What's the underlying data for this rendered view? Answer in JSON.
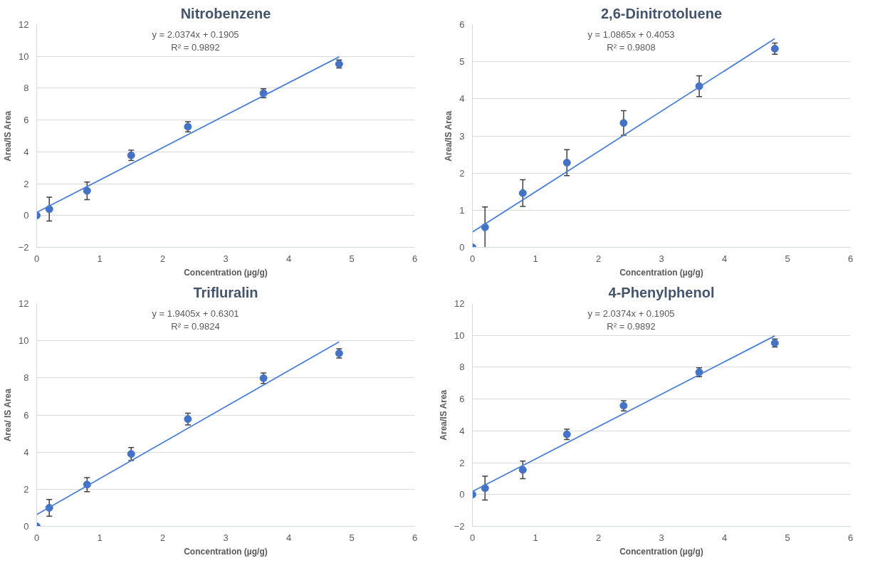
{
  "chart_data": [
    {
      "type": "scatter",
      "title": "Nitrobenzene",
      "xlabel": "Concentration (µg/g)",
      "ylabel": "Area/IS Area",
      "xlim": [
        0,
        6
      ],
      "xticks": [
        0,
        1,
        2,
        3,
        4,
        5,
        6
      ],
      "ylim": [
        -2,
        12
      ],
      "yticks": [
        -2,
        0,
        2,
        4,
        6,
        8,
        10,
        12
      ],
      "grid": "y",
      "series": [
        {
          "marker": "circle",
          "color": "#4472c4",
          "x": [
            0,
            0.2,
            0.8,
            1.5,
            2.4,
            3.6,
            4.8
          ],
          "values": [
            0,
            0.4,
            1.55,
            3.78,
            5.58,
            7.68,
            9.52
          ],
          "errors": [
            null,
            0.75,
            0.55,
            0.32,
            0.32,
            0.28,
            0.25
          ]
        },
        {
          "type": "line",
          "color": "#4a7fd4",
          "x": [
            0,
            4.8
          ],
          "values": [
            0.19,
            9.97
          ]
        }
      ],
      "annotations": [
        "y = 2.0374x + 0.1905",
        "R² = 0.9892"
      ]
    },
    {
      "type": "scatter",
      "title": "2,6-Dinitrotoluene",
      "xlabel": "Concentration (µg/g)",
      "ylabel": "Area/IS Area",
      "xlim": [
        0,
        6
      ],
      "xticks": [
        0,
        1,
        2,
        3,
        4,
        5,
        6
      ],
      "ylim": [
        0,
        6
      ],
      "yticks": [
        0,
        1,
        2,
        3,
        4,
        5,
        6
      ],
      "grid": "y",
      "series": [
        {
          "marker": "circle",
          "color": "#4472c4",
          "x": [
            0,
            0.2,
            0.8,
            1.5,
            2.4,
            3.6,
            4.8
          ],
          "values": [
            0,
            0.54,
            1.46,
            2.28,
            3.35,
            4.34,
            5.35
          ],
          "errors": [
            null,
            0.55,
            0.36,
            0.35,
            0.33,
            0.28,
            0.15
          ]
        },
        {
          "type": "line",
          "color": "#4a7fd4",
          "x": [
            0,
            4.8
          ],
          "values": [
            0.41,
            5.62
          ]
        }
      ],
      "annotations": [
        "y = 1.0865x + 0.4053",
        "R² = 0.9808"
      ]
    },
    {
      "type": "scatter",
      "title": "Trifluralin",
      "xlabel": "Concentration (µg/g)",
      "ylabel": "Area/ IS Area",
      "xlim": [
        0,
        6
      ],
      "xticks": [
        0,
        1,
        2,
        3,
        4,
        5,
        6
      ],
      "ylim": [
        0,
        12
      ],
      "yticks": [
        0,
        2,
        4,
        6,
        8,
        10,
        12
      ],
      "grid": "y",
      "series": [
        {
          "marker": "circle",
          "color": "#4472c4",
          "x": [
            0,
            0.2,
            0.8,
            1.5,
            2.4,
            3.6,
            4.8
          ],
          "values": [
            0,
            1.0,
            2.25,
            3.9,
            5.78,
            7.98,
            9.32
          ],
          "errors": [
            null,
            0.45,
            0.38,
            0.35,
            0.32,
            0.28,
            0.25
          ]
        },
        {
          "type": "line",
          "color": "#4a7fd4",
          "x": [
            0,
            4.8
          ],
          "values": [
            0.63,
            9.94
          ]
        }
      ],
      "annotations": [
        "y = 1.9405x + 0.6301",
        "R² = 0.9824"
      ]
    },
    {
      "type": "scatter",
      "title": "4-Phenylphenol",
      "xlabel": "Concentration (µg/g)",
      "ylabel": "Area/IS Area",
      "xlim": [
        0,
        6
      ],
      "xticks": [
        0,
        1,
        2,
        3,
        4,
        5,
        6
      ],
      "ylim": [
        -2,
        12
      ],
      "yticks": [
        -2,
        0,
        2,
        4,
        6,
        8,
        10,
        12
      ],
      "grid": "y",
      "series": [
        {
          "marker": "circle",
          "color": "#4472c4",
          "x": [
            0,
            0.2,
            0.8,
            1.5,
            2.4,
            3.6,
            4.8
          ],
          "values": [
            0,
            0.4,
            1.55,
            3.78,
            5.58,
            7.68,
            9.52
          ],
          "errors": [
            null,
            0.75,
            0.55,
            0.32,
            0.32,
            0.28,
            0.25
          ]
        },
        {
          "type": "line",
          "color": "#4a7fd4",
          "x": [
            0,
            4.8
          ],
          "values": [
            0.19,
            9.97
          ]
        }
      ],
      "annotations": [
        "y = 2.0374x + 0.1905",
        "R² = 0.9892"
      ]
    }
  ]
}
